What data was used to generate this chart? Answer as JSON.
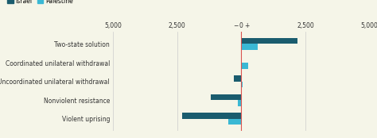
{
  "categories": [
    "Two-state solution",
    "Coordinated unilateral withdrawal",
    "Uncoordinated unilateral withdrawal",
    "Nonviolent resistance",
    "Violent uprising"
  ],
  "israel_values": [
    2200,
    0,
    -300,
    -1200,
    -2300
  ],
  "palestine_values": [
    650,
    280,
    50,
    -120,
    -500
  ],
  "israel_color": "#1a5c6e",
  "palestine_color": "#3ab8d4",
  "xlim": [
    -5000,
    5000
  ],
  "tick_positions": [
    -5000,
    -2500,
    0,
    2500,
    5000
  ],
  "tick_labels_left": [
    "5,000",
    "2,500"
  ],
  "tick_labels_right": [
    "2,500",
    "5,000"
  ],
  "legend_israel": "Israel",
  "legend_palestine": "Palestine",
  "bar_height": 0.32,
  "background_color": "#f5f5e8",
  "vline_color": "#d9534f",
  "grid_color": "#cccccc",
  "label_fontsize": 5.5,
  "tick_fontsize": 5.5
}
